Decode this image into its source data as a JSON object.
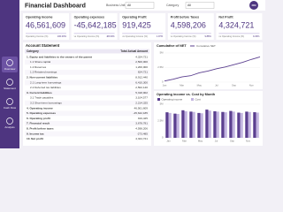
{
  "header": {
    "title": "Financial Dashboard",
    "filters": [
      {
        "label": "Business Unit",
        "value": "All"
      },
      {
        "label": "Category",
        "value": "All"
      }
    ],
    "logo": "FIN"
  },
  "sidebar": [
    "Overview",
    "Statement",
    "Cash Flow",
    "Analysis"
  ],
  "kpis": [
    {
      "label": "Operating Income",
      "value": "46,561,609",
      "sub": "Operating Income (%)",
      "sub_value": "100.00%"
    },
    {
      "label": "Operating expenses",
      "value": "-45,642,185",
      "sub": "vs Operating Income (%)",
      "sub_value": "-98.03%"
    },
    {
      "label": "Operating Profit",
      "value": "919,425",
      "sub": "vs Operating Income (%)",
      "sub_value": "1.97%"
    },
    {
      "label": "Profit before Taxes",
      "value": "4,598,206",
      "sub": "vs Operating Income (%)",
      "sub_value": "9.88%"
    },
    {
      "label": "Net Profit",
      "value": "4,324,721",
      "sub": "vs Operating Income (%)",
      "sub_value": "9.29%"
    }
  ],
  "table": {
    "title": "Account Statement",
    "columns": [
      "Category",
      "Total Actual Amount"
    ],
    "rows": [
      [
        "1. Equity and liabilities to the owners of the parent",
        "4,324,721"
      ],
      [
        "1.1 Share capital",
        "2,500,000"
      ],
      [
        "1.2 Reserves",
        "1,200,000"
      ],
      [
        "1.3 Retained earnings",
        "624,721"
      ],
      [
        "2. Non-current liabilities",
        "8,912,440"
      ],
      [
        "2.1 Long-term borrowings",
        "6,410,300"
      ],
      [
        "2.2 Deferred tax liabilities",
        "2,502,140"
      ],
      [
        "3. Current liabilities",
        "5,318,902"
      ],
      [
        "3.1 Trade payables",
        "3,104,577"
      ],
      [
        "3.2 Short-term borrowings",
        "2,214,325"
      ],
      [
        "4. Operating income",
        "46,561,609"
      ],
      [
        "5. Operating expenses",
        "-45,642,185"
      ],
      [
        "6. Operating profit",
        "919,425"
      ],
      [
        "7. Financial result",
        "3,678,781"
      ],
      [
        "8. Profit before taxes",
        "4,598,206"
      ],
      [
        "9. Income tax",
        "-273,485"
      ],
      [
        "10. Net profit",
        "4,324,721"
      ]
    ]
  },
  "line_chart": {
    "title": "Cumulative of NET",
    "legend": "Cumulative NET",
    "color": "#5b3f8f",
    "categories": [
      "Jan",
      "Feb",
      "Mar",
      "Apr",
      "May",
      "Jun",
      "Jul",
      "Aug",
      "Sep",
      "Oct",
      "Nov",
      "Dec"
    ],
    "values": [
      200000,
      500000,
      900000,
      1100000,
      1600000,
      1900000,
      2300000,
      2600000,
      3000000,
      3400000,
      3900000,
      4324721
    ],
    "ylim": [
      0,
      5000000
    ],
    "yticks": [
      0,
      {
        "value": 2500000,
        "label": "2.5M"
      },
      {
        "value": 5000000,
        "label": "5M"
      }
    ]
  },
  "bar_chart": {
    "title": "Operating income vs. Cost by Month",
    "categories": [
      "Jan",
      "Feb",
      "Mar",
      "Apr",
      "May",
      "Jun",
      "Jul",
      "Aug",
      "Sep",
      "Oct",
      "Nov",
      "Dec"
    ],
    "series": [
      {
        "name": "Operating income",
        "color": "#5b3f8f",
        "values": [
          3800000,
          3600000,
          4100000,
          3900000,
          3700000,
          4200000,
          3950000,
          3850000,
          4000000,
          3750000,
          3900000,
          3812000
        ]
      },
      {
        "name": "Cost",
        "color": "#c3b5e0",
        "values": [
          3700000,
          3550000,
          3950000,
          3850000,
          3650000,
          4050000,
          3900000,
          3800000,
          3900000,
          3700000,
          3850000,
          3755000
        ]
      }
    ],
    "ylim": [
      0,
      5000000
    ],
    "yticks": [
      0,
      {
        "value": 2500000,
        "label": "2.5M"
      },
      {
        "value": 5000000,
        "label": "5M"
      }
    ]
  }
}
